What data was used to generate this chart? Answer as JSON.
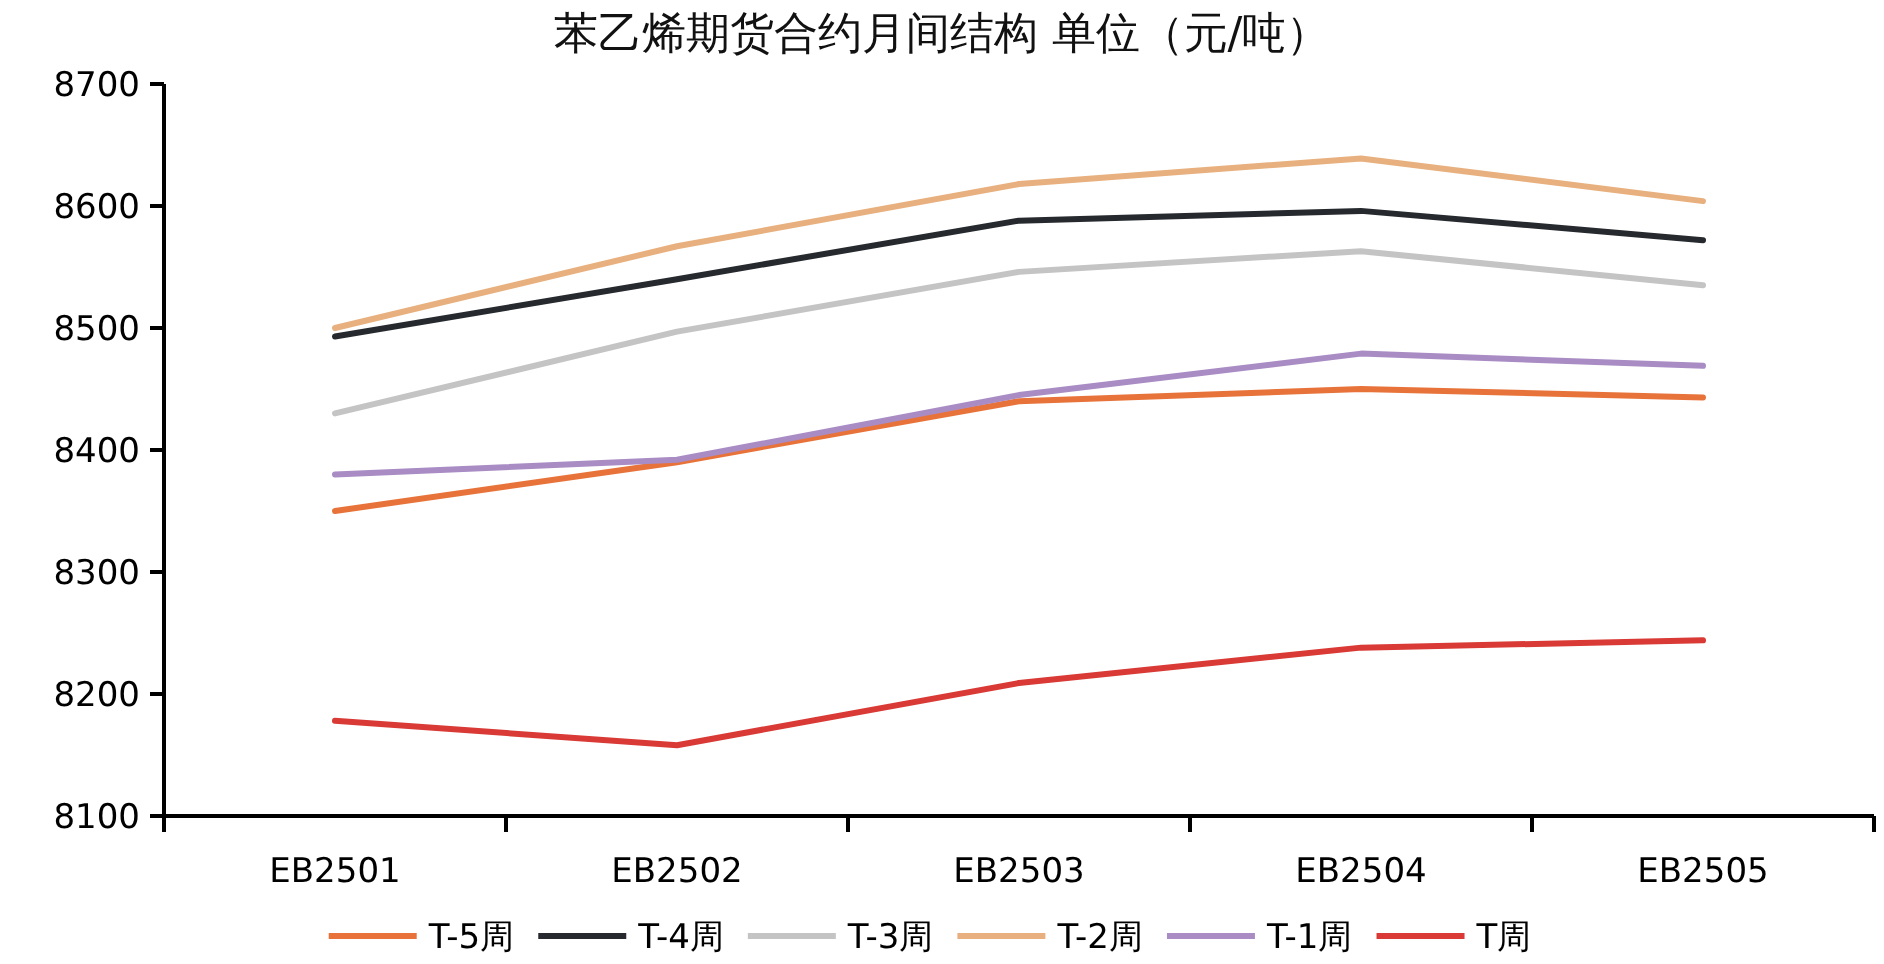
{
  "chart_data": {
    "type": "line",
    "title": "苯乙烯期货合约月间结构 单位（元/吨）",
    "categories": [
      "EB2501",
      "EB2502",
      "EB2503",
      "EB2504",
      "EB2505"
    ],
    "series": [
      {
        "name": "T-5周",
        "color": "#e8733a",
        "values": [
          8350,
          8390,
          8440,
          8450,
          8443
        ]
      },
      {
        "name": "T-4周",
        "color": "#262a2e",
        "values": [
          8493,
          8540,
          8588,
          8596,
          8572
        ]
      },
      {
        "name": "T-3周",
        "color": "#c4c4c4",
        "values": [
          8430,
          8497,
          8546,
          8563,
          8535
        ]
      },
      {
        "name": "T-2周",
        "color": "#e8b07e",
        "values": [
          8500,
          8567,
          8618,
          8639,
          8604
        ]
      },
      {
        "name": "T-1周",
        "color": "#a98cc4",
        "values": [
          8380,
          8392,
          8445,
          8479,
          8469
        ]
      },
      {
        "name": "T周",
        "color": "#d93a35",
        "values": [
          8178,
          8158,
          8209,
          8238,
          8244
        ]
      }
    ],
    "ylim": [
      8100,
      8700
    ],
    "yticks": [
      8100,
      8200,
      8300,
      8400,
      8500,
      8600,
      8700
    ],
    "grid": false,
    "legend": "bottom",
    "marker": "none",
    "line_style": "solid"
  }
}
